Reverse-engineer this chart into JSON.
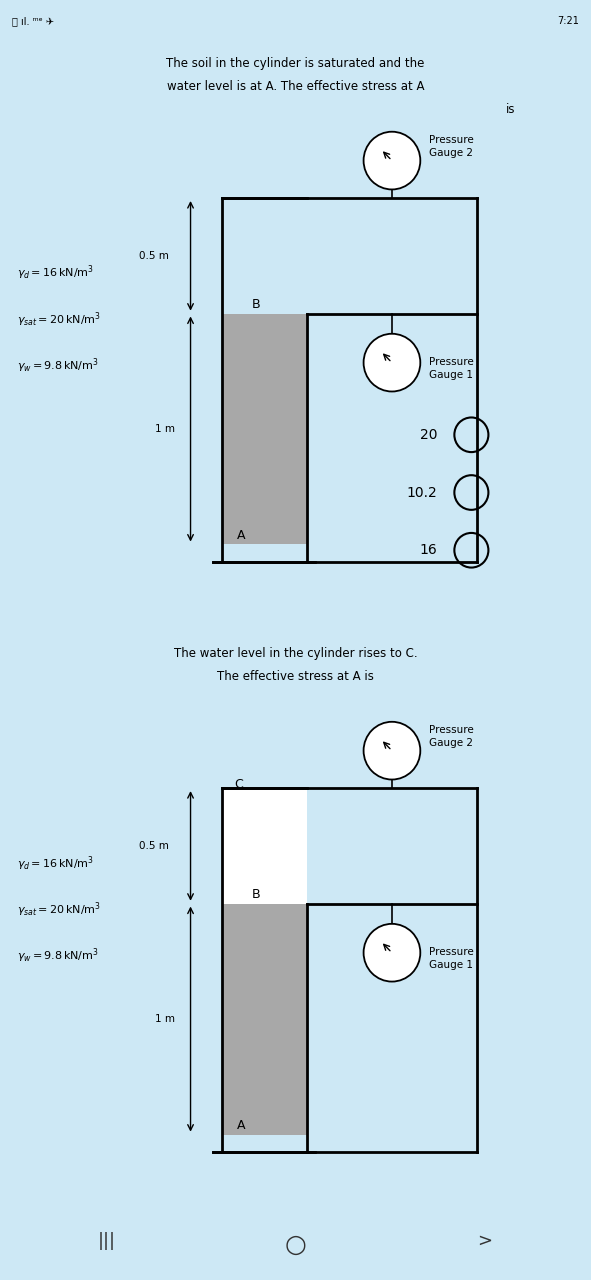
{
  "bg_color": "#cde8f5",
  "panel_color": "#f5f5f5",
  "soil_color": "#a8a8a8",
  "status_bar_color": "#f0f0f0",
  "panel1": {
    "title_line1": "The soil in the cylinder is saturated and the",
    "title_line2": "water level is at A. The effective stress at A",
    "title_line3": "is",
    "gamma_d": "γₐ = 16 kN/m³",
    "gamma_sat": "γₛₐₜ = 20 kN/m³",
    "gamma_w": "γw = 9.8 kN/m³",
    "dim_05": "0.5 m",
    "dim_1": "1 m",
    "label_B": "B",
    "label_A": "A",
    "gauge2_label": "Pressure\nGauge 2",
    "gauge1_label": "Pressure\nGauge 1",
    "options": [
      "20",
      "10.2",
      "16"
    ]
  },
  "panel2": {
    "title_line1": "The water level in the cylinder rises to C.",
    "title_line2": "The effective stress at A is",
    "gamma_d": "γₐ = 16 kN/m³",
    "gamma_sat": "γₛₐₜ = 20 kN/m³",
    "gamma_w": "γw = 9.8 kN/m³",
    "dim_05": "0.5 m",
    "dim_1": "1 m",
    "label_B": "B",
    "label_A": "A",
    "label_C": "C",
    "gauge2_label": "Pressure\nGauge 2",
    "gauge1_label": "Pressure\nGauge 1"
  },
  "nav_bar_color": "#e0e0e0"
}
